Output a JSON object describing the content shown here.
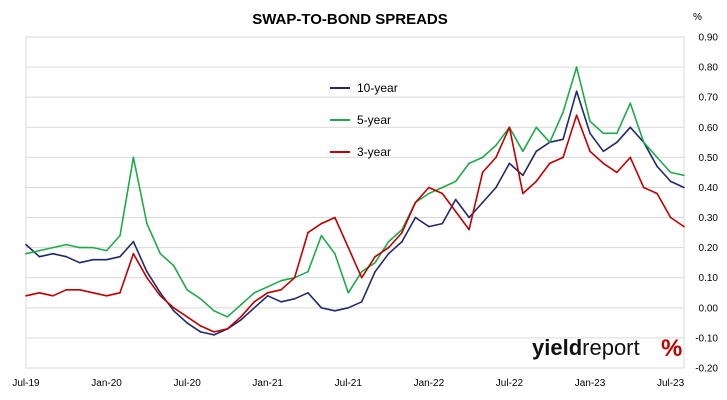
{
  "chart_data": {
    "type": "line",
    "title": "SWAP-TO-BOND SPREADS",
    "y_unit_label": "%",
    "y_axis_side": "right",
    "ylim": [
      -0.2,
      0.9
    ],
    "y_ticks": [
      "0.90",
      "0.80",
      "0.70",
      "0.60",
      "0.50",
      "0.40",
      "0.30",
      "0.20",
      "0.10",
      "0.00",
      "-0.10",
      "-0.20"
    ],
    "x_ticks": [
      "Jul-19",
      "Jan-20",
      "Jul-20",
      "Jan-21",
      "Jul-21",
      "Jan-22",
      "Jul-22",
      "Jan-23",
      "Jul-23"
    ],
    "x_range": [
      "2019-07",
      "2023-08"
    ],
    "grid": "horizontal",
    "legend_position": "upper-center",
    "x": [
      "2019-07",
      "2019-08",
      "2019-09",
      "2019-10",
      "2019-11",
      "2019-12",
      "2020-01",
      "2020-02",
      "2020-03",
      "2020-04",
      "2020-05",
      "2020-06",
      "2020-07",
      "2020-08",
      "2020-09",
      "2020-10",
      "2020-11",
      "2020-12",
      "2021-01",
      "2021-02",
      "2021-03",
      "2021-04",
      "2021-05",
      "2021-06",
      "2021-07",
      "2021-08",
      "2021-09",
      "2021-10",
      "2021-11",
      "2021-12",
      "2022-01",
      "2022-02",
      "2022-03",
      "2022-04",
      "2022-05",
      "2022-06",
      "2022-07",
      "2022-08",
      "2022-09",
      "2022-10",
      "2022-11",
      "2022-12",
      "2023-01",
      "2023-02",
      "2023-03",
      "2023-04",
      "2023-05",
      "2023-06",
      "2023-07",
      "2023-08"
    ],
    "series": [
      {
        "name": "10-year",
        "color": "#1f2a6b",
        "values": [
          0.21,
          0.17,
          0.18,
          0.17,
          0.15,
          0.16,
          0.16,
          0.17,
          0.22,
          0.12,
          0.05,
          -0.01,
          -0.05,
          -0.08,
          -0.09,
          -0.07,
          -0.04,
          0.0,
          0.04,
          0.02,
          0.03,
          0.05,
          0.0,
          -0.01,
          0.0,
          0.02,
          0.12,
          0.18,
          0.22,
          0.3,
          0.27,
          0.28,
          0.36,
          0.3,
          0.35,
          0.4,
          0.48,
          0.44,
          0.52,
          0.55,
          0.56,
          0.72,
          0.58,
          0.52,
          0.55,
          0.6,
          0.55,
          0.47,
          0.42,
          0.4
        ]
      },
      {
        "name": "5-year",
        "color": "#1faa4a",
        "values": [
          0.18,
          0.19,
          0.2,
          0.21,
          0.2,
          0.2,
          0.19,
          0.24,
          0.5,
          0.28,
          0.18,
          0.14,
          0.06,
          0.03,
          -0.01,
          -0.03,
          0.01,
          0.05,
          0.07,
          0.09,
          0.1,
          0.12,
          0.24,
          0.18,
          0.05,
          0.12,
          0.15,
          0.22,
          0.26,
          0.35,
          0.38,
          0.4,
          0.42,
          0.48,
          0.5,
          0.54,
          0.6,
          0.52,
          0.6,
          0.55,
          0.65,
          0.8,
          0.62,
          0.58,
          0.58,
          0.68,
          0.55,
          0.5,
          0.45,
          0.44
        ]
      },
      {
        "name": "3-year",
        "color": "#c00000",
        "values": [
          0.04,
          0.05,
          0.04,
          0.06,
          0.06,
          0.05,
          0.04,
          0.05,
          0.18,
          0.1,
          0.04,
          0.0,
          -0.03,
          -0.06,
          -0.08,
          -0.07,
          -0.03,
          0.02,
          0.05,
          0.06,
          0.1,
          0.25,
          0.28,
          0.3,
          0.2,
          0.1,
          0.17,
          0.2,
          0.25,
          0.35,
          0.4,
          0.38,
          0.32,
          0.26,
          0.45,
          0.5,
          0.6,
          0.38,
          0.42,
          0.48,
          0.5,
          0.64,
          0.52,
          0.48,
          0.45,
          0.5,
          0.4,
          0.38,
          0.3,
          0.27
        ]
      }
    ]
  },
  "logo": {
    "text_bold": "yield",
    "text_regular": "report",
    "symbol": "%"
  }
}
